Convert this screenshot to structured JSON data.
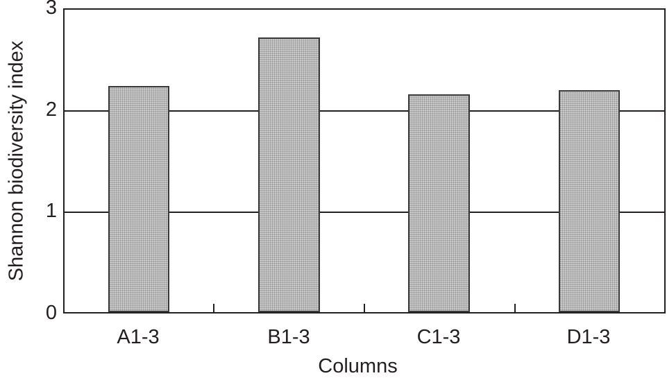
{
  "chart_data": {
    "type": "bar",
    "title": "",
    "xlabel": "Columns",
    "ylabel": "Shannon biodiversity index",
    "categories": [
      "A1-3",
      "B1-3",
      "C1-3",
      "D1-3"
    ],
    "values": [
      2.23,
      2.71,
      2.15,
      2.19
    ],
    "ylim": [
      0,
      3
    ],
    "yticks": [
      "0",
      "1",
      "2",
      "3"
    ],
    "grid": {
      "horizontal": true,
      "lines_at": [
        1,
        2
      ]
    },
    "legend": null,
    "bar_color": "#b8b8b8",
    "bar_pattern": "stippled grey",
    "edge_color": "#3a3a3a"
  }
}
